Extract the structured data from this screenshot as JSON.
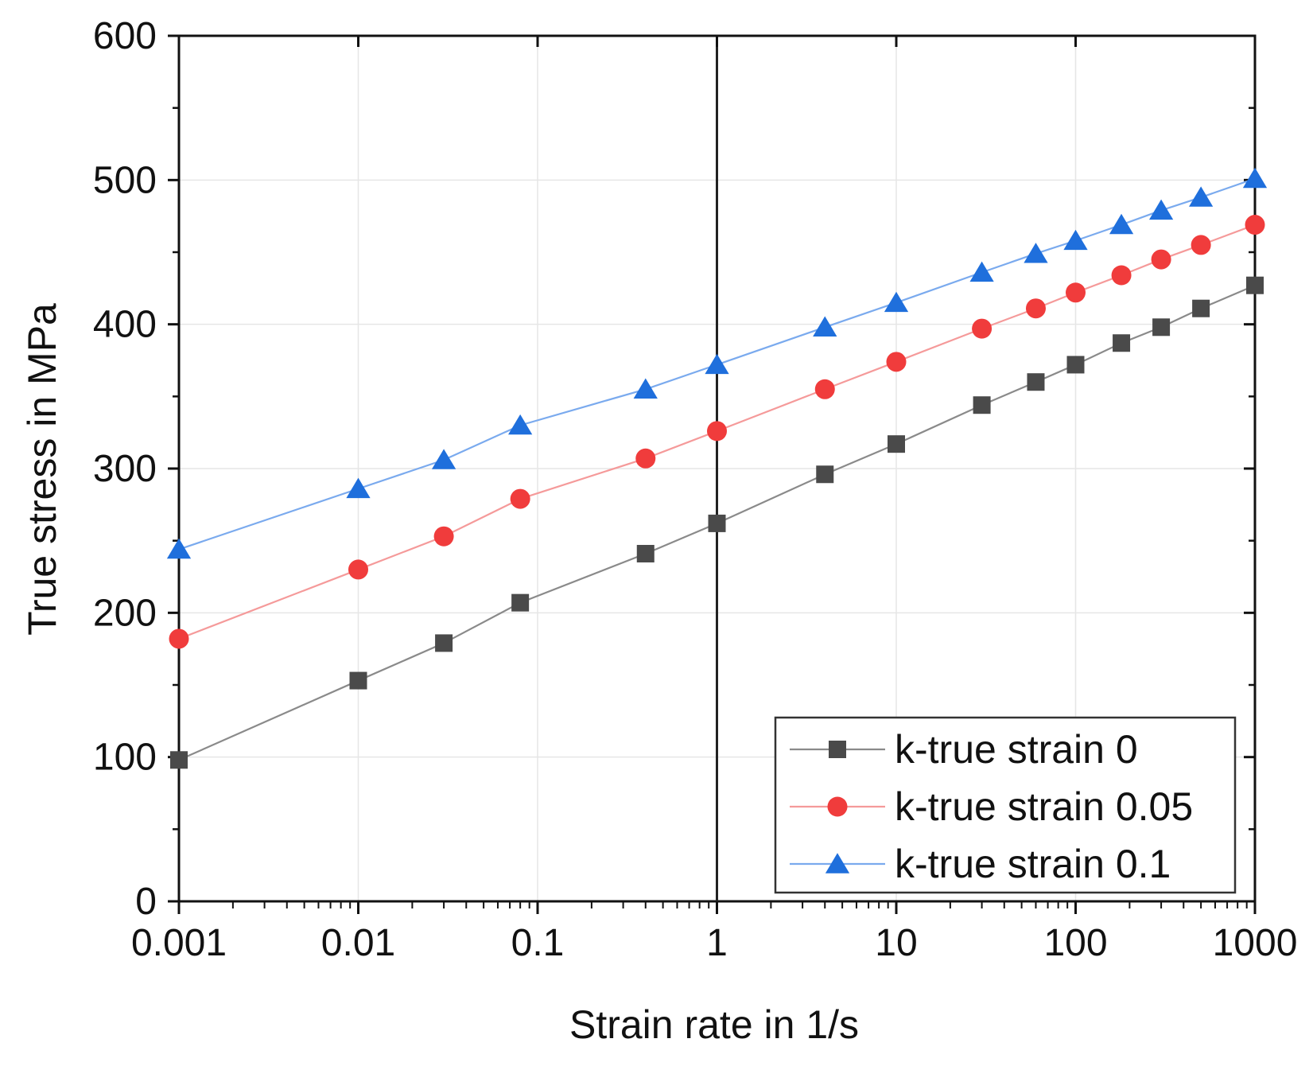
{
  "chart_data": {
    "type": "line",
    "title": "",
    "xlabel": "Strain rate in 1/s",
    "ylabel": "True stress in MPa",
    "xscale": "log",
    "xlim": [
      0.001,
      1000
    ],
    "ylim": [
      0,
      600
    ],
    "xticks": [
      "0.001",
      "0.01",
      "0.1",
      "1",
      "10",
      "100",
      "1000"
    ],
    "yticks": [
      "0",
      "100",
      "200",
      "300",
      "400",
      "500",
      "600"
    ],
    "grid": true,
    "reference_line_x": 1,
    "legend_position": "bottom-right",
    "series": [
      {
        "name": "k-true strain 0",
        "color": "#4a4a4a",
        "line_color": "#8a8a8a",
        "marker": "square",
        "x": [
          0.001,
          0.01,
          0.03,
          0.08,
          0.4,
          1,
          4,
          10,
          30,
          60,
          100,
          180,
          300,
          500,
          1000
        ],
        "y": [
          98,
          153,
          179,
          207,
          241,
          262,
          296,
          317,
          344,
          360,
          372,
          387,
          398,
          411,
          427
        ]
      },
      {
        "name": "k-true strain 0.05",
        "color": "#f03c3c",
        "line_color": "#f59a9a",
        "marker": "circle",
        "x": [
          0.001,
          0.01,
          0.03,
          0.08,
          0.4,
          1,
          4,
          10,
          30,
          60,
          100,
          180,
          300,
          500,
          1000
        ],
        "y": [
          182,
          230,
          253,
          279,
          307,
          326,
          355,
          374,
          397,
          411,
          422,
          434,
          445,
          455,
          469
        ]
      },
      {
        "name": "k-true strain 0.1",
        "color": "#1f6fdc",
        "line_color": "#7aaaee",
        "marker": "triangle",
        "x": [
          0.001,
          0.01,
          0.03,
          0.08,
          0.4,
          1,
          4,
          10,
          30,
          60,
          100,
          180,
          300,
          500,
          1000
        ],
        "y": [
          244,
          286,
          306,
          330,
          355,
          372,
          398,
          415,
          436,
          449,
          458,
          469,
          479,
          488,
          501
        ]
      }
    ]
  }
}
